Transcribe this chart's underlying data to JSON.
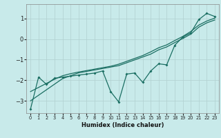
{
  "xlabel": "Humidex (Indice chaleur)",
  "background_color": "#c8eaea",
  "grid_color": "#b0d0d0",
  "line_color": "#1a6e62",
  "xlim": [
    -0.5,
    23.5
  ],
  "ylim": [
    -3.6,
    1.7
  ],
  "yticks": [
    -3,
    -2,
    -1,
    0,
    1
  ],
  "xticks": [
    0,
    1,
    2,
    3,
    4,
    5,
    6,
    7,
    8,
    9,
    10,
    11,
    12,
    13,
    14,
    15,
    16,
    17,
    18,
    19,
    20,
    21,
    22,
    23
  ],
  "data_x": [
    0,
    1,
    2,
    3,
    4,
    5,
    6,
    7,
    8,
    9,
    10,
    11,
    12,
    13,
    14,
    15,
    16,
    17,
    18,
    19,
    20,
    21,
    22,
    23
  ],
  "line1_y": [
    -3.4,
    -1.85,
    -2.2,
    -1.9,
    -1.85,
    -1.8,
    -1.75,
    -1.7,
    -1.65,
    -1.55,
    -2.55,
    -3.05,
    -1.7,
    -1.65,
    -2.1,
    -1.55,
    -1.2,
    -1.25,
    -0.3,
    0.1,
    0.3,
    0.95,
    1.25,
    1.1
  ],
  "line2_y": [
    -3.0,
    -2.73,
    -2.46,
    -2.19,
    -1.92,
    -1.78,
    -1.64,
    -1.57,
    -1.5,
    -1.43,
    -1.36,
    -1.29,
    -1.15,
    -1.01,
    -0.87,
    -0.73,
    -0.52,
    -0.38,
    -0.17,
    0.03,
    0.24,
    0.58,
    0.79,
    0.93
  ],
  "line3_y": [
    -2.55,
    -2.35,
    -2.15,
    -1.95,
    -1.78,
    -1.68,
    -1.6,
    -1.53,
    -1.46,
    -1.39,
    -1.32,
    -1.22,
    -1.08,
    -0.94,
    -0.8,
    -0.62,
    -0.42,
    -0.28,
    -0.07,
    0.13,
    0.37,
    0.68,
    0.88,
    1.02
  ]
}
